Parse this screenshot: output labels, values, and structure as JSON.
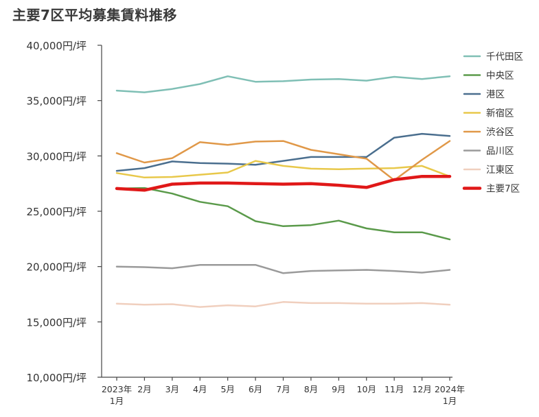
{
  "chart_data": {
    "type": "line",
    "title": "主要7区平均募集賃料推移",
    "xlabel": "",
    "ylabel": "",
    "categories": [
      [
        "2023年",
        "1月"
      ],
      [
        "2月"
      ],
      [
        "3月"
      ],
      [
        "4月"
      ],
      [
        "5月"
      ],
      [
        "6月"
      ],
      [
        "7月"
      ],
      [
        "8月"
      ],
      [
        "9月"
      ],
      [
        "10月"
      ],
      [
        "11月"
      ],
      [
        "12月"
      ],
      [
        "2024年",
        "1月"
      ]
    ],
    "ylim": [
      10000,
      40000
    ],
    "yticks": [
      {
        "value": 10000,
        "label": "10,000円/坪"
      },
      {
        "value": 15000,
        "label": "15,000円/坪"
      },
      {
        "value": 20000,
        "label": "20,000円/坪"
      },
      {
        "value": 25000,
        "label": "25,000円/坪"
      },
      {
        "value": 30000,
        "label": "30,000円/坪"
      },
      {
        "value": 35000,
        "label": "35,000円/坪"
      },
      {
        "value": 40000,
        "label": "40,000円/坪"
      }
    ],
    "grid": false,
    "legend_position": "right",
    "series": [
      {
        "name": "千代田区",
        "color": "#7fbfb5",
        "width": 2.5,
        "values": [
          35900,
          35750,
          36050,
          36500,
          37200,
          36700,
          36750,
          36900,
          36950,
          36800,
          37150,
          36950,
          37200
        ]
      },
      {
        "name": "中央区",
        "color": "#5a9a4a",
        "width": 2.5,
        "values": [
          27050,
          27100,
          26600,
          25850,
          25450,
          24100,
          23650,
          23750,
          24150,
          23450,
          23100,
          23100,
          22450
        ]
      },
      {
        "name": "港区",
        "color": "#4a6e8e",
        "width": 2.5,
        "values": [
          28650,
          28900,
          29500,
          29350,
          29300,
          29200,
          29550,
          29900,
          29900,
          29900,
          31650,
          32000,
          31800
        ]
      },
      {
        "name": "新宿区",
        "color": "#e8c84a",
        "width": 2.5,
        "values": [
          28450,
          28050,
          28100,
          28300,
          28500,
          29550,
          29100,
          28850,
          28800,
          28850,
          28900,
          29100,
          28150
        ]
      },
      {
        "name": "渋谷区",
        "color": "#e09848",
        "width": 2.5,
        "values": [
          30250,
          29400,
          29800,
          31250,
          31000,
          31300,
          31350,
          30550,
          30150,
          29750,
          27800,
          29650,
          31350
        ]
      },
      {
        "name": "品川区",
        "color": "#9a9a9a",
        "width": 2.5,
        "values": [
          20000,
          19950,
          19850,
          20150,
          20150,
          20150,
          19400,
          19600,
          19650,
          19700,
          19600,
          19450,
          19700
        ]
      },
      {
        "name": "江東区",
        "color": "#f0cfbe",
        "width": 2.5,
        "values": [
          16650,
          16550,
          16600,
          16350,
          16500,
          16400,
          16800,
          16700,
          16700,
          16650,
          16650,
          16700,
          16550
        ]
      },
      {
        "name": "主要7区",
        "color": "#e01818",
        "width": 4.5,
        "values": [
          27050,
          26900,
          27450,
          27550,
          27550,
          27500,
          27450,
          27500,
          27350,
          27150,
          27850,
          28150,
          28150
        ]
      }
    ]
  }
}
